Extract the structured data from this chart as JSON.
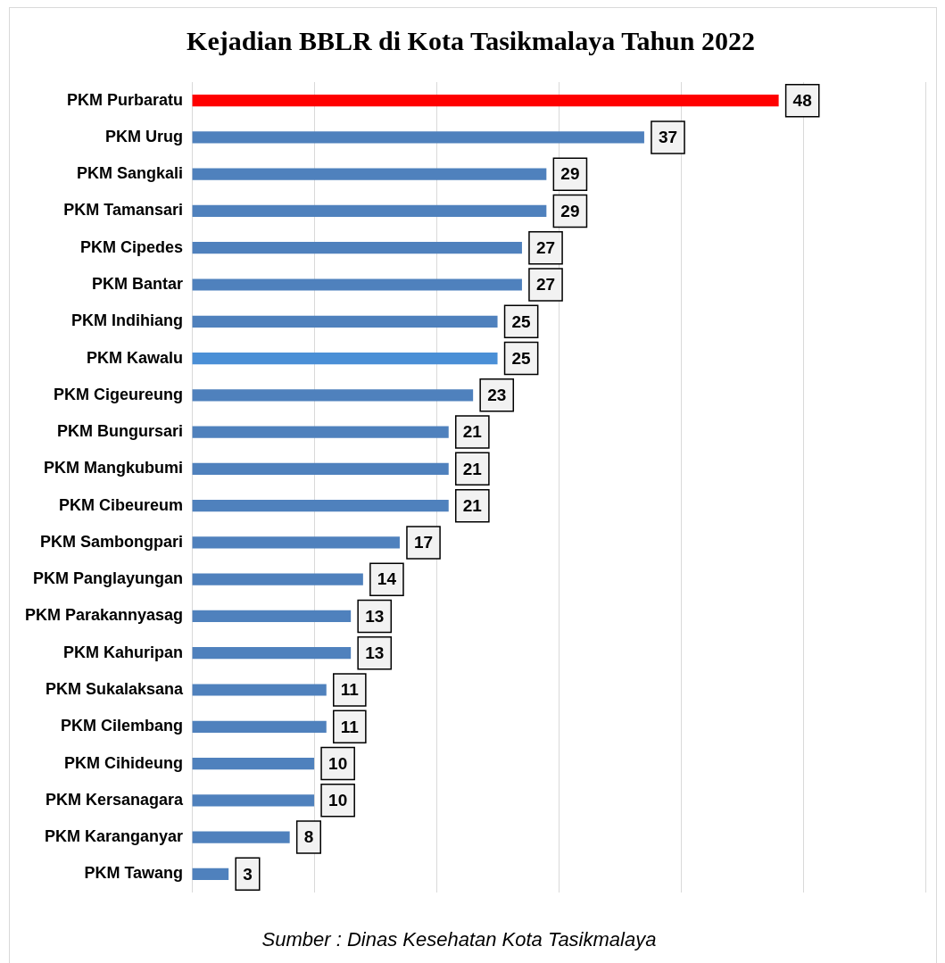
{
  "chart_data": {
    "type": "bar",
    "orientation": "horizontal",
    "title": "Kejadian BBLR di Kota Tasikmalaya Tahun 2022",
    "categories": [
      "PKM Purbaratu",
      "PKM Urug",
      "PKM Sangkali",
      "PKM Tamansari",
      "PKM Cipedes",
      "PKM Bantar",
      "PKM Indihiang",
      "PKM Kawalu",
      "PKM Cigeureung",
      "PKM Bungursari",
      "PKM Mangkubumi",
      "PKM Cibeureum",
      "PKM Sambongpari",
      "PKM Panglayungan",
      "PKM Parakannyasag",
      "PKM Kahuripan",
      "PKM Sukalaksana",
      "PKM Cilembang",
      "PKM Cihideung",
      "PKM Kersanagara",
      "PKM Karanganyar",
      "PKM Tawang"
    ],
    "values": [
      48,
      37,
      29,
      29,
      27,
      27,
      25,
      25,
      23,
      21,
      21,
      21,
      17,
      14,
      13,
      13,
      11,
      11,
      10,
      10,
      8,
      3
    ],
    "colors": [
      "#ff0000",
      "#4f81bd",
      "#4f81bd",
      "#4f81bd",
      "#4f81bd",
      "#4f81bd",
      "#4f81bd",
      "#4a8fd6",
      "#4f81bd",
      "#4f81bd",
      "#4f81bd",
      "#4f81bd",
      "#4f81bd",
      "#4f81bd",
      "#4f81bd",
      "#4f81bd",
      "#4f81bd",
      "#4f81bd",
      "#4f81bd",
      "#4f81bd",
      "#4f81bd",
      "#4f81bd"
    ],
    "xlim": [
      0,
      60
    ],
    "xticks": [
      {
        "value": 0,
        "label": null
      },
      {
        "value": 10,
        "label": null
      },
      {
        "value": 20,
        "label": null
      },
      {
        "value": 30,
        "label": null
      },
      {
        "value": 40,
        "label": null
      },
      {
        "value": 50,
        "label": null
      },
      {
        "value": 60,
        "label": null
      }
    ],
    "tick_labels": "y",
    "grid": "x",
    "legend": false,
    "data_labels": true,
    "annotations": [
      "Sumber : Dinas Kesehatan Kota Tasikmalaya"
    ]
  }
}
